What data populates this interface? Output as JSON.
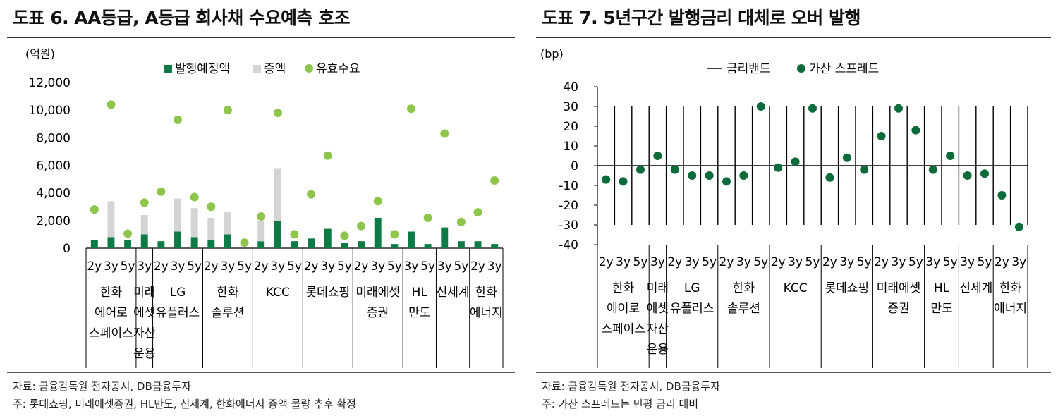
{
  "colors": {
    "issue": "#0e7a45",
    "increase": "#d4d4d4",
    "demand": "#8dc64a",
    "band": "#000000",
    "spread": "#0b6b3a",
    "axis": "#000000"
  },
  "left": {
    "title": "도표 6. AA등급, A등급 회사채 수요예측 호조",
    "unit_label": "(억원)",
    "source": "자료: 금융감독원 전자공시, DB금융투자",
    "note": "주: 롯데쇼핑, 미래에셋증권, HL만도, 신세계, 한화에너지 증액 물량 추후 확정"
  },
  "right": {
    "title": "도표 7. 5년구간 발행금리 대체로 오버 발행",
    "unit_label": "(bp)",
    "source": "자료: 금융감독원 전자공시, DB금융투자",
    "note": "주: 가산 스프레드는 민평 금리 대비"
  },
  "chart_data": [
    {
      "type": "bar",
      "stacked": true,
      "ylim": [
        0,
        12000
      ],
      "yticks": [
        "0",
        "2,000",
        "4,000",
        "6,000",
        "8,000",
        "10,000",
        "12,000"
      ],
      "ytick_values": [
        0,
        2000,
        4000,
        6000,
        8000,
        10000,
        12000
      ],
      "legend": [
        "발행예정액",
        "증액",
        "유효수요"
      ],
      "legend_position": "top",
      "categories": [
        "2y",
        "3y",
        "5y",
        "3y",
        "2y",
        "3y",
        "5y",
        "2y",
        "3y",
        "5y",
        "2y",
        "3y",
        "5y",
        "2y",
        "3y",
        "5y",
        "2y",
        "3y",
        "5y",
        "3y",
        "5y",
        "3y",
        "5y",
        "2y",
        "3y"
      ],
      "groups": [
        {
          "label": [
            "한화",
            "에어로",
            "스페이스"
          ],
          "count": 3
        },
        {
          "label": [
            "미래",
            "에셋",
            "자산",
            "운용"
          ],
          "count": 1
        },
        {
          "label": [
            "LG",
            "유플러스"
          ],
          "count": 3
        },
        {
          "label": [
            "한화",
            "솔루션"
          ],
          "count": 3
        },
        {
          "label": [
            "KCC"
          ],
          "count": 3
        },
        {
          "label": [
            "롯데쇼핑"
          ],
          "count": 3
        },
        {
          "label": [
            "미래에셋",
            "증권"
          ],
          "count": 3
        },
        {
          "label": [
            "HL",
            "만도"
          ],
          "count": 2
        },
        {
          "label": [
            "신세계"
          ],
          "count": 2
        },
        {
          "label": [
            "한화",
            "에너지"
          ],
          "count": 2
        }
      ],
      "series": [
        {
          "name": "발행예정액",
          "kind": "bar",
          "values": [
            600,
            800,
            600,
            1000,
            500,
            1200,
            800,
            600,
            1000,
            0,
            500,
            2000,
            500,
            700,
            1400,
            400,
            500,
            2200,
            300,
            1200,
            300,
            1500,
            500,
            500,
            300
          ]
        },
        {
          "name": "증액",
          "kind": "bar",
          "values": [
            0,
            2600,
            0,
            1400,
            0,
            2400,
            2100,
            1600,
            1600,
            0,
            1500,
            3800,
            0,
            0,
            0,
            0,
            0,
            0,
            0,
            0,
            0,
            0,
            0,
            0,
            0
          ]
        },
        {
          "name": "유효수요",
          "kind": "scatter",
          "values": [
            2800,
            10400,
            1050,
            3300,
            4100,
            9300,
            3700,
            3000,
            10000,
            400,
            2300,
            9800,
            1000,
            3900,
            6700,
            900,
            1600,
            3400,
            1000,
            10100,
            2200,
            8300,
            1900,
            2600,
            4900
          ]
        }
      ]
    },
    {
      "type": "scatter",
      "ylim": [
        -40,
        40
      ],
      "yticks": [
        "-40",
        "-30",
        "-20",
        "-10",
        "0",
        "10",
        "20",
        "30",
        "40"
      ],
      "ytick_values": [
        -40,
        -30,
        -20,
        -10,
        0,
        10,
        20,
        30,
        40
      ],
      "band": [
        -30,
        30
      ],
      "legend": [
        "금리밴드",
        "가산 스프레드"
      ],
      "legend_position": "top",
      "categories": [
        "2y",
        "3y",
        "5y",
        "3y",
        "2y",
        "3y",
        "5y",
        "2y",
        "3y",
        "5y",
        "2y",
        "3y",
        "5y",
        "2y",
        "3y",
        "5y",
        "2y",
        "3y",
        "5y",
        "3y",
        "5y",
        "3y",
        "5y",
        "2y",
        "3y"
      ],
      "groups": [
        {
          "label": [
            "한화",
            "에어로",
            "스페이스"
          ],
          "count": 3
        },
        {
          "label": [
            "미래",
            "에셋",
            "자산",
            "운용"
          ],
          "count": 1
        },
        {
          "label": [
            "LG",
            "유플러스"
          ],
          "count": 3
        },
        {
          "label": [
            "한화",
            "솔루션"
          ],
          "count": 3
        },
        {
          "label": [
            "KCC"
          ],
          "count": 3
        },
        {
          "label": [
            "롯데쇼핑"
          ],
          "count": 3
        },
        {
          "label": [
            "미래에셋",
            "증권"
          ],
          "count": 3
        },
        {
          "label": [
            "HL",
            "만도"
          ],
          "count": 2
        },
        {
          "label": [
            "신세계"
          ],
          "count": 2
        },
        {
          "label": [
            "한화",
            "에너지"
          ],
          "count": 2
        }
      ],
      "series": [
        {
          "name": "가산 스프레드",
          "values": [
            -7,
            -8,
            -2,
            5,
            -2,
            -5,
            -5,
            -8,
            -5,
            30,
            -1,
            2,
            29,
            -6,
            4,
            -2,
            15,
            29,
            18,
            -2,
            5,
            -5,
            -4,
            -15,
            -31
          ]
        }
      ]
    }
  ]
}
